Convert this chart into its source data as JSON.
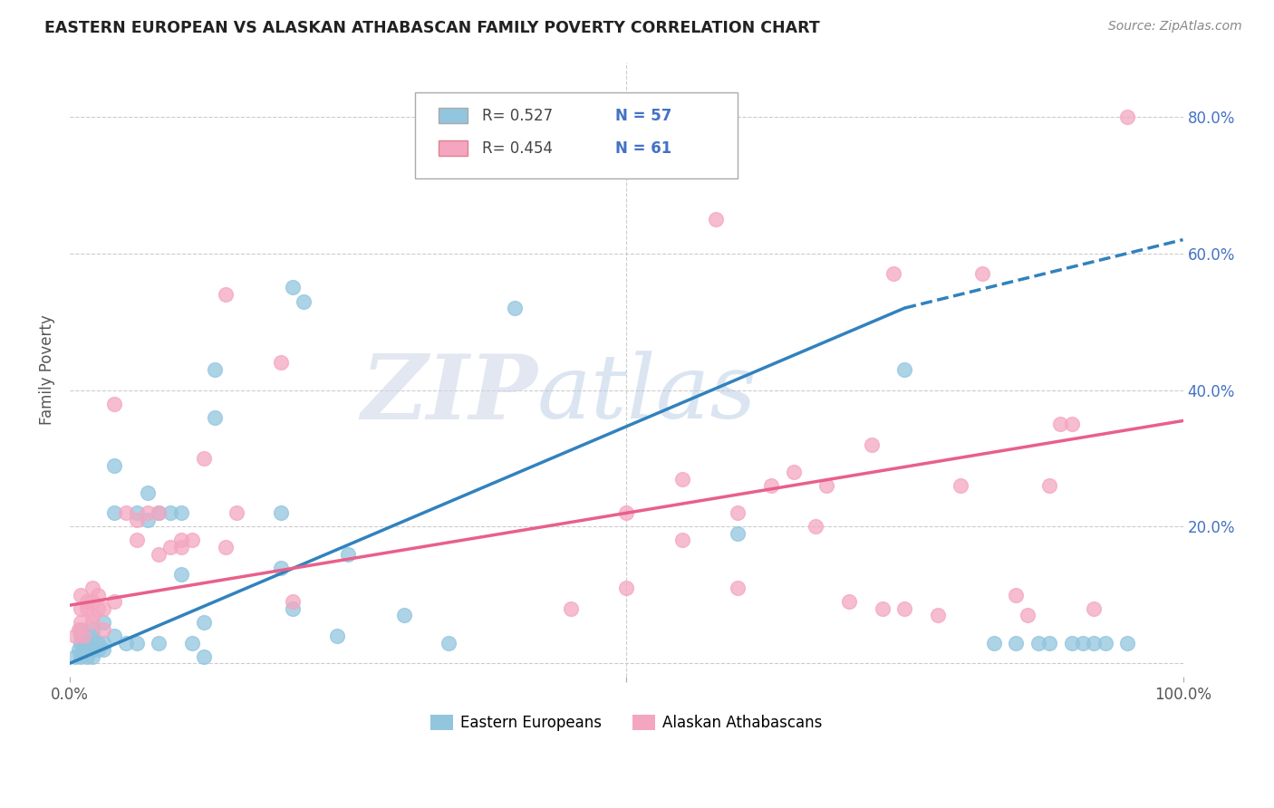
{
  "title": "EASTERN EUROPEAN VS ALASKAN ATHABASCAN FAMILY POVERTY CORRELATION CHART",
  "source": "Source: ZipAtlas.com",
  "ylabel": "Family Poverty",
  "xlim": [
    0,
    1.0
  ],
  "ylim": [
    -0.02,
    0.88
  ],
  "ytick_positions": [
    0.0,
    0.2,
    0.4,
    0.6,
    0.8
  ],
  "blue_color": "#92c5de",
  "pink_color": "#f4a6c0",
  "blue_line_color": "#3182bd",
  "pink_line_color": "#e8608a",
  "blue_scatter": [
    [
      0.005,
      0.01
    ],
    [
      0.008,
      0.02
    ],
    [
      0.01,
      0.01
    ],
    [
      0.01,
      0.03
    ],
    [
      0.01,
      0.04
    ],
    [
      0.01,
      0.05
    ],
    [
      0.012,
      0.02
    ],
    [
      0.015,
      0.01
    ],
    [
      0.015,
      0.03
    ],
    [
      0.02,
      0.02
    ],
    [
      0.02,
      0.01
    ],
    [
      0.02,
      0.04
    ],
    [
      0.02,
      0.05
    ],
    [
      0.025,
      0.03
    ],
    [
      0.025,
      0.02
    ],
    [
      0.03,
      0.02
    ],
    [
      0.03,
      0.03
    ],
    [
      0.03,
      0.06
    ],
    [
      0.04,
      0.04
    ],
    [
      0.04,
      0.22
    ],
    [
      0.04,
      0.29
    ],
    [
      0.05,
      0.03
    ],
    [
      0.06,
      0.03
    ],
    [
      0.06,
      0.22
    ],
    [
      0.07,
      0.25
    ],
    [
      0.07,
      0.21
    ],
    [
      0.08,
      0.22
    ],
    [
      0.08,
      0.03
    ],
    [
      0.09,
      0.22
    ],
    [
      0.1,
      0.22
    ],
    [
      0.1,
      0.13
    ],
    [
      0.11,
      0.03
    ],
    [
      0.12,
      0.06
    ],
    [
      0.12,
      0.01
    ],
    [
      0.13,
      0.36
    ],
    [
      0.13,
      0.43
    ],
    [
      0.19,
      0.22
    ],
    [
      0.19,
      0.14
    ],
    [
      0.2,
      0.08
    ],
    [
      0.2,
      0.55
    ],
    [
      0.21,
      0.53
    ],
    [
      0.24,
      0.04
    ],
    [
      0.25,
      0.16
    ],
    [
      0.3,
      0.07
    ],
    [
      0.34,
      0.03
    ],
    [
      0.4,
      0.52
    ],
    [
      0.6,
      0.19
    ],
    [
      0.75,
      0.43
    ],
    [
      0.83,
      0.03
    ],
    [
      0.85,
      0.03
    ],
    [
      0.87,
      0.03
    ],
    [
      0.88,
      0.03
    ],
    [
      0.9,
      0.03
    ],
    [
      0.91,
      0.03
    ],
    [
      0.92,
      0.03
    ],
    [
      0.93,
      0.03
    ],
    [
      0.95,
      0.03
    ]
  ],
  "pink_scatter": [
    [
      0.005,
      0.04
    ],
    [
      0.008,
      0.05
    ],
    [
      0.01,
      0.06
    ],
    [
      0.01,
      0.08
    ],
    [
      0.01,
      0.1
    ],
    [
      0.012,
      0.04
    ],
    [
      0.015,
      0.08
    ],
    [
      0.015,
      0.09
    ],
    [
      0.02,
      0.07
    ],
    [
      0.02,
      0.06
    ],
    [
      0.02,
      0.09
    ],
    [
      0.02,
      0.11
    ],
    [
      0.025,
      0.08
    ],
    [
      0.025,
      0.1
    ],
    [
      0.03,
      0.05
    ],
    [
      0.03,
      0.08
    ],
    [
      0.04,
      0.09
    ],
    [
      0.04,
      0.38
    ],
    [
      0.05,
      0.22
    ],
    [
      0.06,
      0.21
    ],
    [
      0.06,
      0.18
    ],
    [
      0.07,
      0.22
    ],
    [
      0.08,
      0.16
    ],
    [
      0.08,
      0.22
    ],
    [
      0.09,
      0.17
    ],
    [
      0.1,
      0.17
    ],
    [
      0.1,
      0.18
    ],
    [
      0.11,
      0.18
    ],
    [
      0.12,
      0.3
    ],
    [
      0.14,
      0.17
    ],
    [
      0.14,
      0.54
    ],
    [
      0.15,
      0.22
    ],
    [
      0.19,
      0.44
    ],
    [
      0.2,
      0.09
    ],
    [
      0.45,
      0.08
    ],
    [
      0.5,
      0.11
    ],
    [
      0.5,
      0.22
    ],
    [
      0.55,
      0.27
    ],
    [
      0.55,
      0.18
    ],
    [
      0.58,
      0.65
    ],
    [
      0.6,
      0.11
    ],
    [
      0.6,
      0.22
    ],
    [
      0.63,
      0.26
    ],
    [
      0.65,
      0.28
    ],
    [
      0.67,
      0.2
    ],
    [
      0.68,
      0.26
    ],
    [
      0.7,
      0.09
    ],
    [
      0.72,
      0.32
    ],
    [
      0.73,
      0.08
    ],
    [
      0.74,
      0.57
    ],
    [
      0.75,
      0.08
    ],
    [
      0.78,
      0.07
    ],
    [
      0.8,
      0.26
    ],
    [
      0.82,
      0.57
    ],
    [
      0.85,
      0.1
    ],
    [
      0.86,
      0.07
    ],
    [
      0.88,
      0.26
    ],
    [
      0.89,
      0.35
    ],
    [
      0.9,
      0.35
    ],
    [
      0.92,
      0.08
    ],
    [
      0.95,
      0.8
    ]
  ],
  "blue_line_solid": {
    "x0": 0.0,
    "y0": 0.0,
    "x1": 0.75,
    "y1": 0.52
  },
  "blue_line_dashed": {
    "x0": 0.75,
    "y0": 0.52,
    "x1": 1.0,
    "y1": 0.62
  },
  "pink_line": {
    "x0": 0.0,
    "y0": 0.085,
    "x1": 1.0,
    "y1": 0.355
  },
  "watermark_zip": "ZIP",
  "watermark_atlas": "atlas",
  "background": "#ffffff",
  "grid_color": "#cccccc",
  "grid_vert_x": [
    0.5
  ]
}
